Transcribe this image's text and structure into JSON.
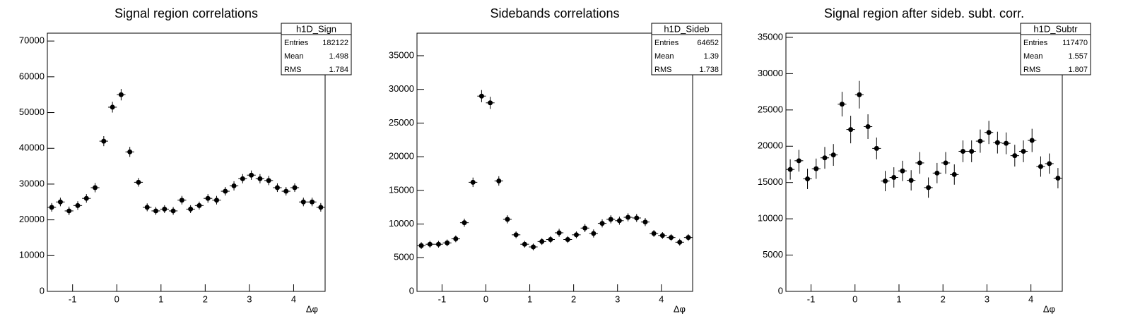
{
  "chart_data": [
    {
      "type": "histogram",
      "title": "Signal region correlations",
      "xlabel": "Δφ",
      "bins": [
        -1.5708,
        -1.3744,
        -1.1781,
        -0.9817,
        -0.7854,
        -0.589,
        -0.3927,
        -0.1963,
        0,
        0.1963,
        0.3927,
        0.589,
        0.7854,
        0.9817,
        1.1781,
        1.3744,
        1.5708,
        1.7671,
        1.9635,
        2.1598,
        2.3562,
        2.5525,
        2.7489,
        2.9452,
        3.1416,
        3.3379,
        3.5343,
        3.7306,
        3.927,
        4.1233,
        4.3197,
        4.516,
        4.7124
      ],
      "values": [
        23500,
        25000,
        22500,
        24000,
        26000,
        29000,
        42000,
        51500,
        55000,
        39000,
        30500,
        23500,
        22500,
        23000,
        22500,
        25500,
        23000,
        24000,
        26000,
        25500,
        28000,
        29500,
        31500,
        32500,
        31500,
        31000,
        29000,
        28000,
        29000,
        25000,
        25000,
        23500
      ],
      "errors": [
        1200,
        1200,
        1200,
        1200,
        1200,
        1300,
        1400,
        1500,
        1600,
        1400,
        1200,
        1100,
        1100,
        1100,
        1100,
        1200,
        1100,
        1100,
        1200,
        1200,
        1200,
        1300,
        1300,
        1300,
        1300,
        1300,
        1200,
        1200,
        1200,
        1200,
        1200,
        1200
      ],
      "xlim": [
        -1.5708,
        4.7124
      ],
      "ylim": [
        0,
        72200
      ],
      "xticks": [
        -1,
        0,
        1,
        2,
        3,
        4
      ],
      "yticks": [
        0,
        10000,
        20000,
        30000,
        40000,
        50000,
        60000,
        70000
      ],
      "color": "#000000",
      "stats": {
        "title": "h1D_Sign",
        "rows": [
          [
            "Entries",
            182122
          ],
          [
            "Mean",
            1.498
          ],
          [
            "RMS",
            1.784
          ]
        ]
      }
    },
    {
      "type": "histogram",
      "title": "Sidebands correlations",
      "xlabel": "Δφ",
      "bins": [
        -1.5708,
        -1.3744,
        -1.1781,
        -0.9817,
        -0.7854,
        -0.589,
        -0.3927,
        -0.1963,
        0,
        0.1963,
        0.3927,
        0.589,
        0.7854,
        0.9817,
        1.1781,
        1.3744,
        1.5708,
        1.7671,
        1.9635,
        2.1598,
        2.3562,
        2.5525,
        2.7489,
        2.9452,
        3.1416,
        3.3379,
        3.5343,
        3.7306,
        3.927,
        4.1233,
        4.3197,
        4.516,
        4.7124
      ],
      "values": [
        6800,
        7000,
        7000,
        7200,
        7800,
        10200,
        16200,
        29000,
        28000,
        16400,
        10700,
        8400,
        7000,
        6600,
        7400,
        7700,
        8700,
        7700,
        8400,
        9400,
        8600,
        10100,
        10700,
        10500,
        11000,
        10900,
        10300,
        8600,
        8300,
        8000,
        7300,
        8000
      ],
      "errors": [
        500,
        500,
        500,
        500,
        500,
        600,
        700,
        900,
        900,
        700,
        600,
        500,
        500,
        500,
        500,
        500,
        600,
        500,
        500,
        600,
        600,
        600,
        600,
        600,
        600,
        600,
        600,
        500,
        500,
        500,
        500,
        500
      ],
      "xlim": [
        -1.5708,
        4.7124
      ],
      "ylim": [
        0,
        38350
      ],
      "xticks": [
        -1,
        0,
        1,
        2,
        3,
        4
      ],
      "yticks": [
        0,
        5000,
        10000,
        15000,
        20000,
        25000,
        30000,
        35000
      ],
      "color": "#000000",
      "stats": {
        "title": "h1D_Sideb",
        "rows": [
          [
            "Entries",
            64652
          ],
          [
            "Mean",
            1.39
          ],
          [
            "RMS",
            1.738
          ]
        ]
      }
    },
    {
      "type": "histogram",
      "title": "Signal region after sideb. subt. corr.",
      "xlabel": "Δφ",
      "bins": [
        -1.5708,
        -1.3744,
        -1.1781,
        -0.9817,
        -0.7854,
        -0.589,
        -0.3927,
        -0.1963,
        0,
        0.1963,
        0.3927,
        0.589,
        0.7854,
        0.9817,
        1.1781,
        1.3744,
        1.5708,
        1.7671,
        1.9635,
        2.1598,
        2.3562,
        2.5525,
        2.7489,
        2.9452,
        3.1416,
        3.3379,
        3.5343,
        3.7306,
        3.927,
        4.1233,
        4.3197,
        4.516,
        4.7124
      ],
      "values": [
        16800,
        18000,
        15500,
        16900,
        18400,
        18800,
        25800,
        22300,
        27100,
        22700,
        19700,
        15200,
        15700,
        16600,
        15300,
        17700,
        14300,
        16300,
        17700,
        16100,
        19300,
        19300,
        20700,
        21900,
        20500,
        20400,
        18700,
        19300,
        20800,
        17200,
        17600,
        15600
      ],
      "errors": [
        1400,
        1500,
        1400,
        1400,
        1500,
        1500,
        1700,
        1900,
        1900,
        1700,
        1500,
        1400,
        1400,
        1400,
        1400,
        1500,
        1400,
        1400,
        1500,
        1400,
        1500,
        1500,
        1600,
        1600,
        1500,
        1500,
        1500,
        1500,
        1600,
        1400,
        1400,
        1400
      ],
      "xlim": [
        -1.5708,
        4.7124
      ],
      "ylim": [
        0,
        35580
      ],
      "xticks": [
        -1,
        0,
        1,
        2,
        3,
        4
      ],
      "yticks": [
        0,
        5000,
        10000,
        15000,
        20000,
        25000,
        30000,
        35000
      ],
      "color": "#000000",
      "stats": {
        "title": "h1D_Subtr",
        "rows": [
          [
            "Entries",
            117470
          ],
          [
            "Mean",
            1.557
          ],
          [
            "RMS",
            1.807
          ]
        ]
      }
    }
  ]
}
